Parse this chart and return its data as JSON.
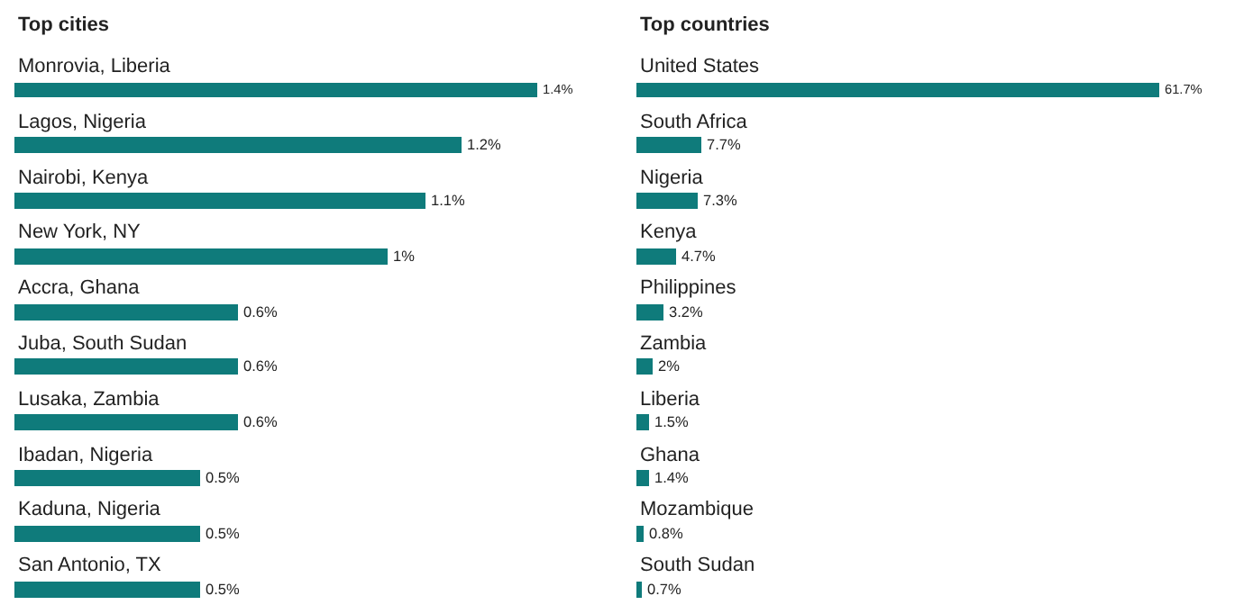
{
  "chart_data": [
    {
      "type": "bar",
      "orientation": "horizontal",
      "title": "Top cities",
      "categories": [
        "Monrovia, Liberia",
        "Lagos, Nigeria",
        "Nairobi, Kenya",
        "New York, NY",
        "Accra, Ghana",
        "Juba, South Sudan",
        "Lusaka, Zambia",
        "Ibadan, Nigeria",
        "Kaduna, Nigeria",
        "San Antonio, TX"
      ],
      "values": [
        1.4,
        1.2,
        1.1,
        1,
        0.6,
        0.6,
        0.6,
        0.5,
        0.5,
        0.5
      ],
      "value_labels": [
        "1.4%",
        "1.2%",
        "1.1%",
        "1%",
        "0.6%",
        "0.6%",
        "0.6%",
        "0.5%",
        "0.5%",
        "0.5%"
      ],
      "color": "#0f7b7b"
    },
    {
      "type": "bar",
      "orientation": "horizontal",
      "title": "Top countries",
      "categories": [
        "United States",
        "South Africa",
        "Nigeria",
        "Kenya",
        "Philippines",
        "Zambia",
        "Liberia",
        "Ghana",
        "Mozambique",
        "South Sudan"
      ],
      "values": [
        61.7,
        7.7,
        7.3,
        4.7,
        3.2,
        2,
        1.5,
        1.4,
        0.8,
        0.7
      ],
      "value_labels": [
        "61.7%",
        "7.7%",
        "7.3%",
        "4.7%",
        "3.2%",
        "2%",
        "1.5%",
        "1.4%",
        "0.8%",
        "0.7%"
      ],
      "color": "#0f7b7b"
    }
  ]
}
